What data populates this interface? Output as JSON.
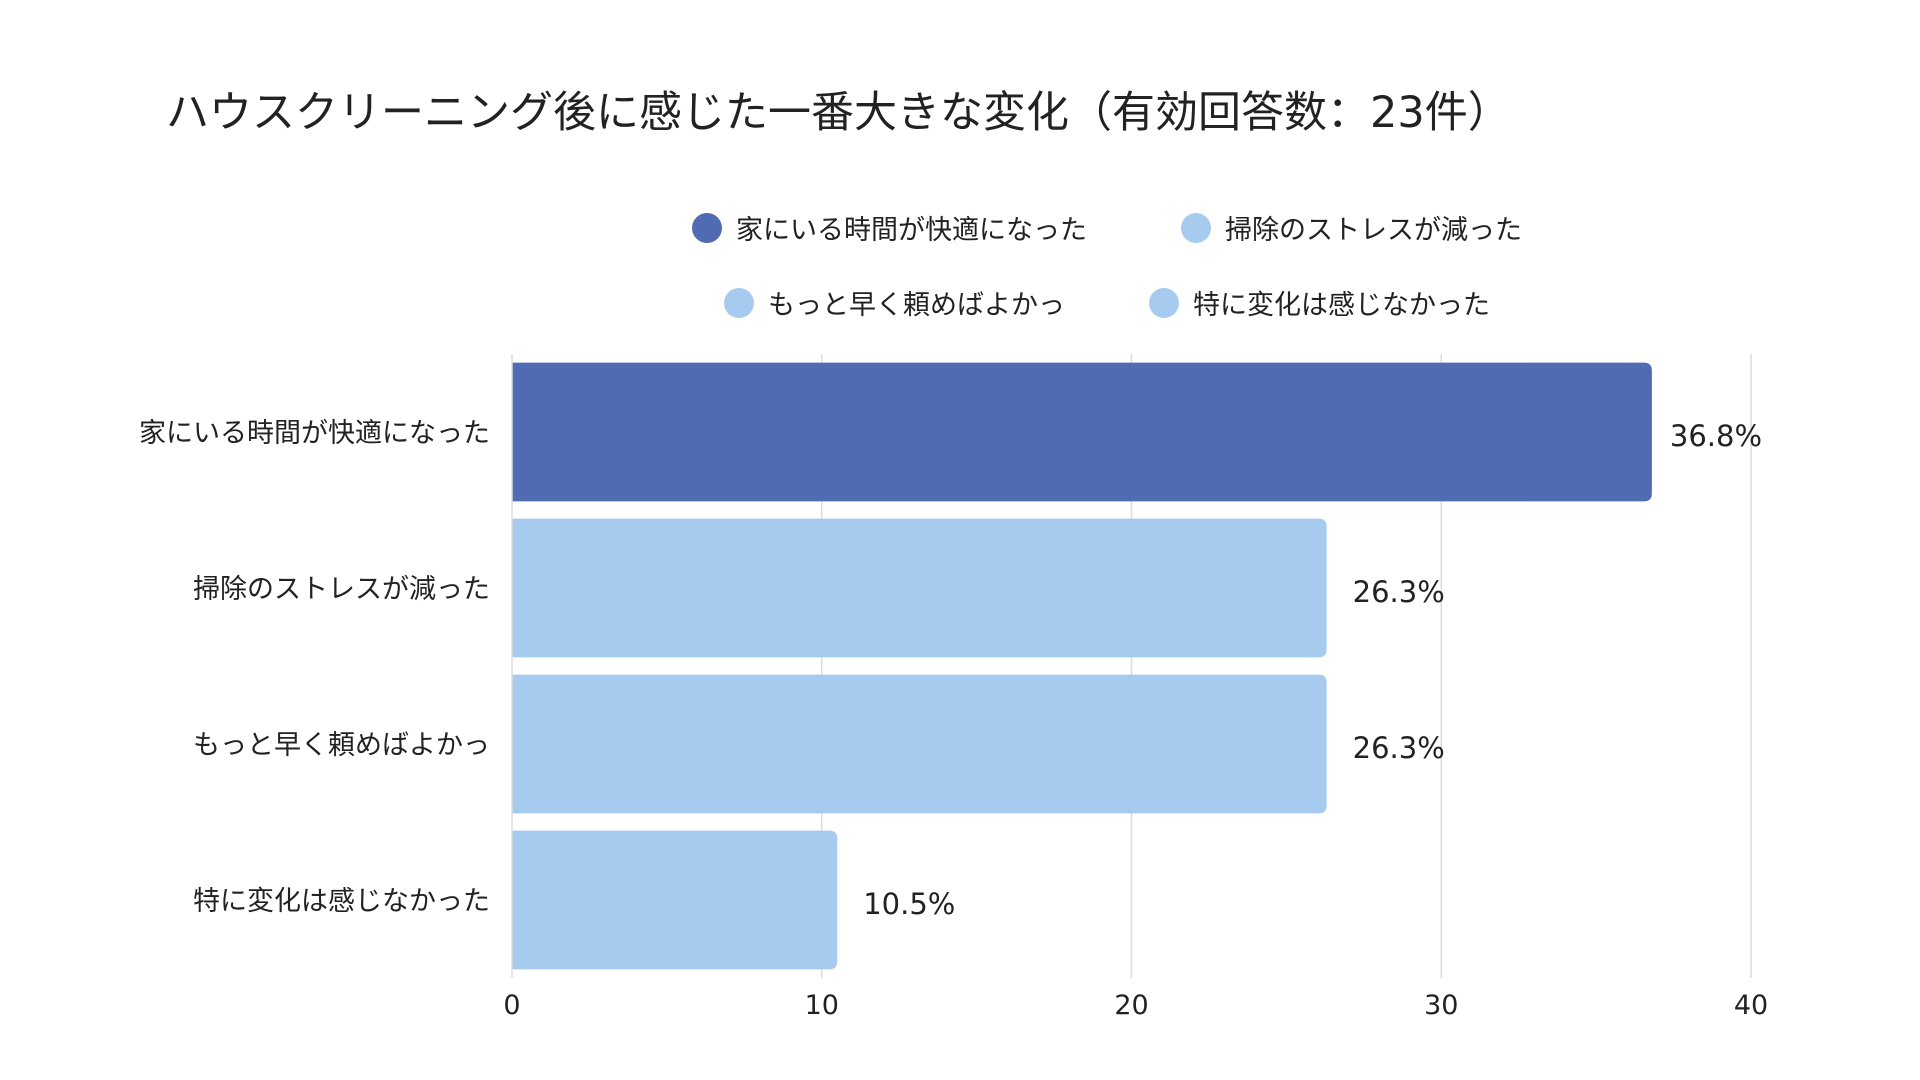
{
  "chart_data": {
    "type": "bar",
    "orientation": "horizontal",
    "title": "ハウスクリーニング後に感じた一番大きな変化（有効回答数：23件）",
    "categories": [
      "家にいる時間が快適になった",
      "掃除のストレスが減った",
      "もっと早く頼めばよかっ",
      "特に変化は感じなかった"
    ],
    "values": [
      36.8,
      26.3,
      26.3,
      10.5
    ],
    "data_labels": [
      "36.8%",
      "26.3%",
      "26.3%",
      "10.5%"
    ],
    "colors": [
      "#516bb3",
      "#a7cbef",
      "#a7cbef",
      "#a7cbef"
    ],
    "legend": [
      {
        "label": "家にいる時間が快適になった",
        "color": "#516bb3"
      },
      {
        "label": "掃除のストレスが減った",
        "color": "#a7cbef"
      },
      {
        "label": "もっと早く頼めばよかっ",
        "color": "#a7cbef"
      },
      {
        "label": "特に変化は感じなかった",
        "color": "#a7cbef"
      }
    ],
    "legend_position": "top",
    "xlim": [
      0,
      40
    ],
    "xticks": [
      "0",
      "10",
      "20",
      "30",
      "40"
    ],
    "grid": true,
    "xlabel": "",
    "ylabel": ""
  }
}
